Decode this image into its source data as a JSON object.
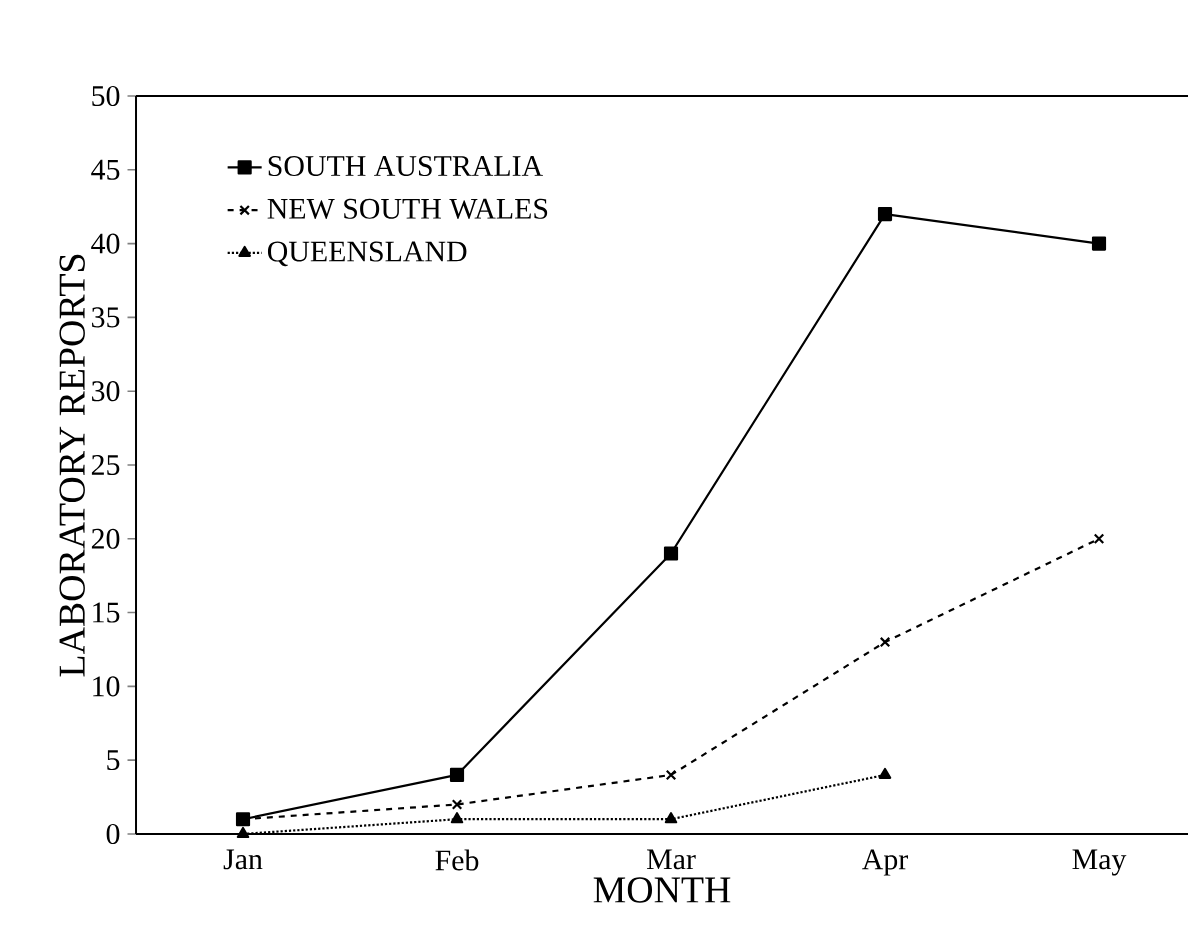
{
  "chart_data": {
    "type": "line",
    "xlabel": "MONTH",
    "ylabel": "LABORATORY REPORTS",
    "categories": [
      "Jan",
      "Feb",
      "Mar",
      "Apr",
      "May"
    ],
    "ylim": [
      0,
      50
    ],
    "yticks": [
      0,
      5,
      10,
      15,
      20,
      25,
      30,
      35,
      40,
      45,
      50
    ],
    "legend": "top left",
    "grid": false,
    "series": [
      {
        "name": "SOUTH AUSTRALIA",
        "color": "#000000",
        "marker": "square",
        "line_style": "solid",
        "values": [
          1,
          4,
          19,
          42,
          40
        ]
      },
      {
        "name": "NEW SOUTH WALES",
        "color": "#000000",
        "marker": "cross",
        "line_style": "dashed",
        "values": [
          1,
          2,
          4,
          13,
          20
        ]
      },
      {
        "name": "QUEENSLAND",
        "color": "#000000",
        "marker": "triangle",
        "line_style": "dotted",
        "values": [
          0,
          1,
          1,
          4,
          null
        ]
      }
    ]
  }
}
